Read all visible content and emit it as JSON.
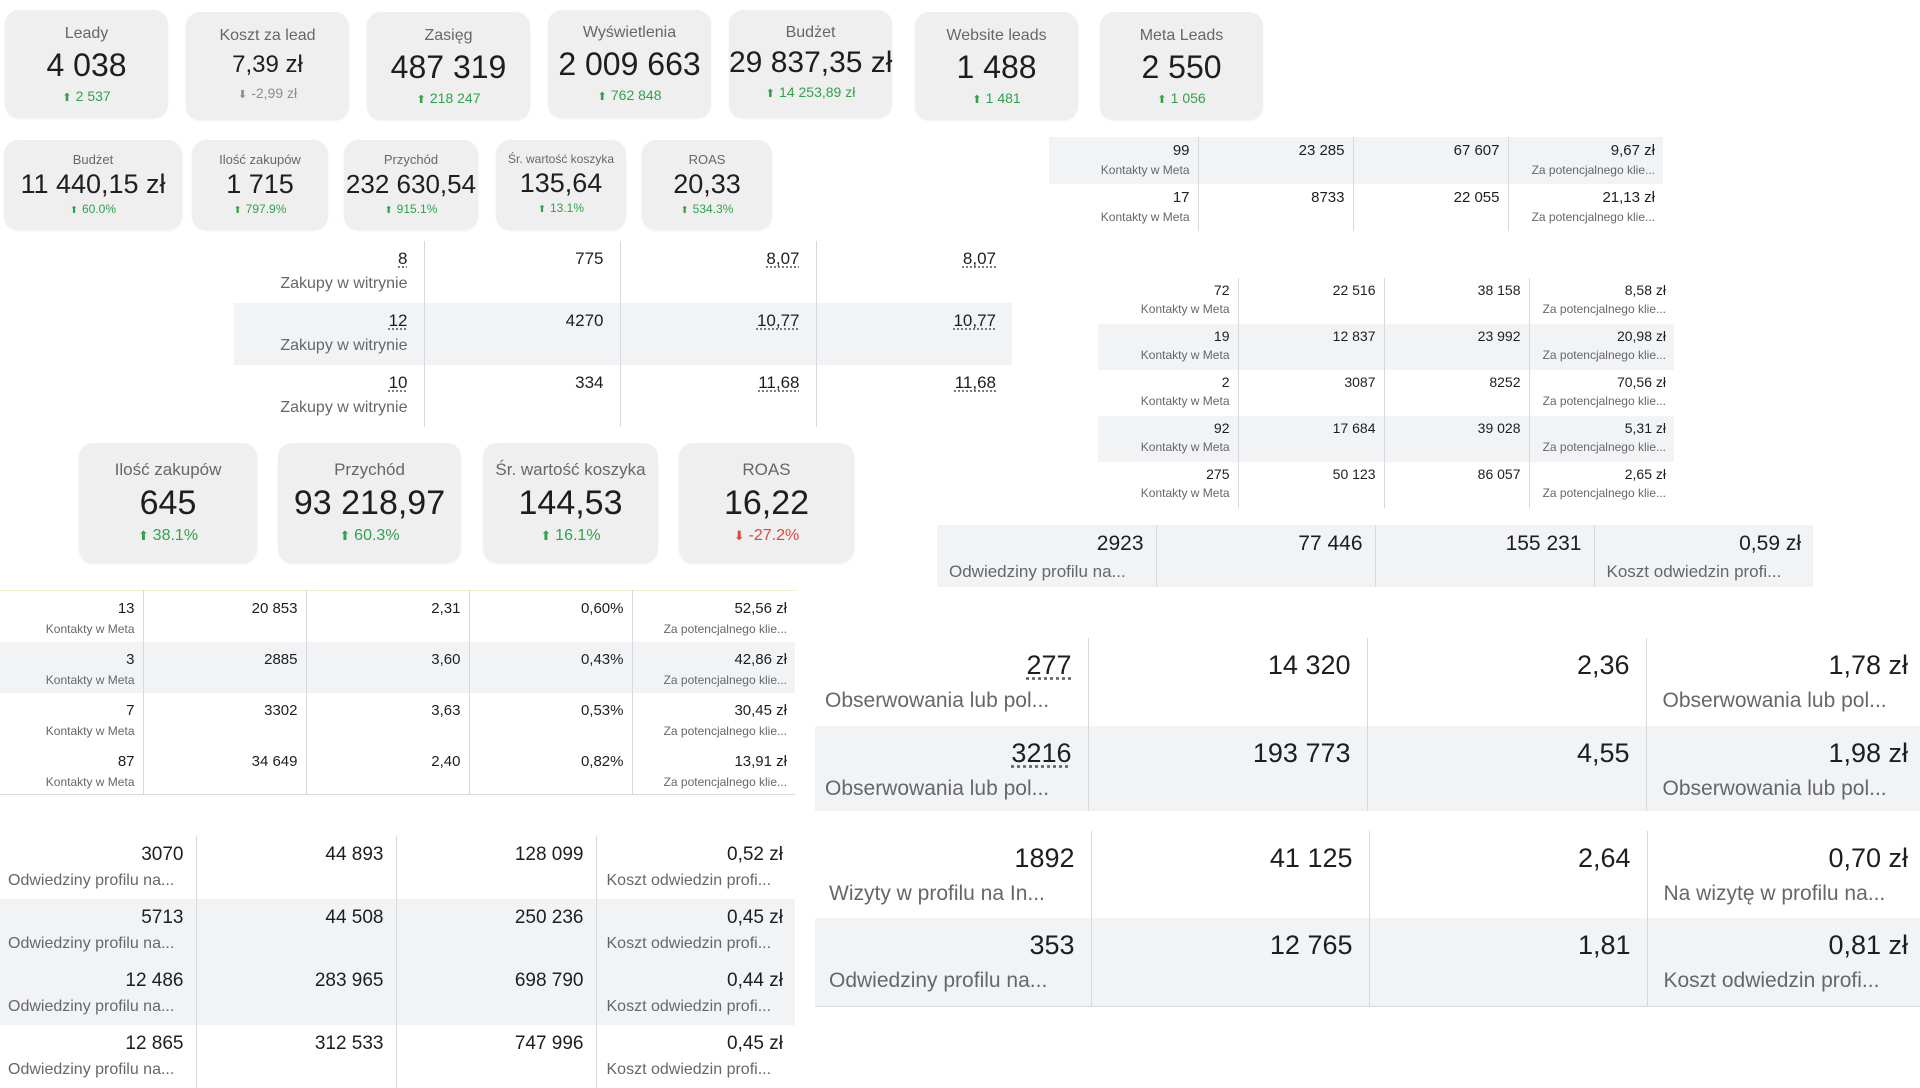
{
  "row1_cards": [
    {
      "title": "Leady",
      "value": "4 038",
      "delta": "2 537",
      "dir": "up"
    },
    {
      "title": "Koszt za lead",
      "value": "7,39 zł",
      "delta": "-2,99 zł",
      "dir": "neutral"
    },
    {
      "title": "Zasięg",
      "value": "487 319",
      "delta": "218 247",
      "dir": "up"
    },
    {
      "title": "Wyświetlenia",
      "value": "2 009 663",
      "delta": "762 848",
      "dir": "up"
    },
    {
      "title": "Budżet",
      "value": "29 837,35 zł",
      "delta": "14 253,89 zł",
      "dir": "up"
    },
    {
      "title": "Website leads",
      "value": "1 488",
      "delta": "1 481",
      "dir": "up"
    },
    {
      "title": "Meta Leads",
      "value": "2 550",
      "delta": "1 056",
      "dir": "up"
    }
  ],
  "row2_cards": [
    {
      "title": "Budżet",
      "value": "11 440,15 zł",
      "delta": "60.0%",
      "dir": "up"
    },
    {
      "title": "Ilość zakupów",
      "value": "1 715",
      "delta": "797.9%",
      "dir": "up"
    },
    {
      "title": "Przychód",
      "value": "232 630,54",
      "delta": "915.1%",
      "dir": "up"
    },
    {
      "title": "Śr. wartość koszyka",
      "value": "135,64",
      "delta": "13.1%",
      "dir": "up"
    },
    {
      "title": "ROAS",
      "value": "20,33",
      "delta": "534.3%",
      "dir": "up"
    }
  ],
  "row3_cards": [
    {
      "title": "Ilość zakupów",
      "value": "645",
      "delta": "38.1%",
      "dir": "up"
    },
    {
      "title": "Przychód",
      "value": "93 218,97",
      "delta": "60.3%",
      "dir": "up"
    },
    {
      "title": "Śr. wartość koszyka",
      "value": "144,53",
      "delta": "16.1%",
      "dir": "up"
    },
    {
      "title": "ROAS",
      "value": "16,22",
      "delta": "-27.2%",
      "dir": "down"
    }
  ],
  "purchases_table": [
    {
      "c1": "8",
      "c1_sub": "Zakupy w witrynie",
      "c2": "775",
      "c3": "8,07",
      "c4": "8,07"
    },
    {
      "c1": "12",
      "c1_sub": "Zakupy w witrynie",
      "c2": "4270",
      "c3": "10,77",
      "c4": "10,77"
    },
    {
      "c1": "10",
      "c1_sub": "Zakupy w witrynie",
      "c2": "334",
      "c3": "11,68",
      "c4": "11,68"
    }
  ],
  "contacts_table_a": [
    {
      "c1": "99",
      "c1_sub": "Kontakty w Meta",
      "c2": "23 285",
      "c3": "67 607",
      "c4": "9,67 zł",
      "c4_sub": "Za potencjalnego klie..."
    },
    {
      "c1": "17",
      "c1_sub": "Kontakty w Meta",
      "c2": "8733",
      "c3": "22 055",
      "c4": "21,13 zł",
      "c4_sub": "Za potencjalnego klie..."
    }
  ],
  "contacts_table_b": [
    {
      "c1": "72",
      "c1_sub": "Kontakty w Meta",
      "c2": "22 516",
      "c3": "38 158",
      "c4": "8,58 zł",
      "c4_sub": "Za potencjalnego klie..."
    },
    {
      "c1": "19",
      "c1_sub": "Kontakty w Meta",
      "c2": "12 837",
      "c3": "23 992",
      "c4": "20,98 zł",
      "c4_sub": "Za potencjalnego klie..."
    },
    {
      "c1": "2",
      "c1_sub": "Kontakty w Meta",
      "c2": "3087",
      "c3": "8252",
      "c4": "70,56 zł",
      "c4_sub": "Za potencjalnego klie..."
    },
    {
      "c1": "92",
      "c1_sub": "Kontakty w Meta",
      "c2": "17 684",
      "c3": "39 028",
      "c4": "5,31 zł",
      "c4_sub": "Za potencjalnego klie..."
    },
    {
      "c1": "275",
      "c1_sub": "Kontakty w Meta",
      "c2": "50 123",
      "c3": "86 057",
      "c4": "2,65 zł",
      "c4_sub": "Za potencjalnego klie..."
    }
  ],
  "profile_visits_single": [
    {
      "c1": "2923",
      "c1_sub": "Odwiedziny profilu na...",
      "c2": "77 446",
      "c3": "155 231",
      "c4": "0,59 zł",
      "c4_sub": "Koszt odwiedzin profi..."
    }
  ],
  "contacts_table_c": [
    {
      "c1": "13",
      "c1_sub": "Kontakty w Meta",
      "c2": "20 853",
      "c3": "2,31",
      "c4": "0,60%",
      "c5": "52,56 zł",
      "c5_sub": "Za potencjalnego klie..."
    },
    {
      "c1": "3",
      "c1_sub": "Kontakty w Meta",
      "c2": "2885",
      "c3": "3,60",
      "c4": "0,43%",
      "c5": "42,86 zł",
      "c5_sub": "Za potencjalnego klie..."
    },
    {
      "c1": "7",
      "c1_sub": "Kontakty w Meta",
      "c2": "3302",
      "c3": "3,63",
      "c4": "0,53%",
      "c5": "30,45 zł",
      "c5_sub": "Za potencjalnego klie..."
    },
    {
      "c1": "87",
      "c1_sub": "Kontakty w Meta",
      "c2": "34 649",
      "c3": "2,40",
      "c4": "0,82%",
      "c5": "13,91 zł",
      "c5_sub": "Za potencjalnego klie..."
    }
  ],
  "follows_table": [
    {
      "c1": "277",
      "c1_sub": "Obserwowania lub pol...",
      "c2": "14 320",
      "c3": "2,36",
      "c4": "1,78 zł",
      "c4_sub": "Obserwowania lub pol..."
    },
    {
      "c1": "3216",
      "c1_sub": "Obserwowania lub pol...",
      "c2": "193 773",
      "c3": "4,55",
      "c4": "1,98 zł",
      "c4_sub": "Obserwowania lub pol..."
    }
  ],
  "profile_visits_table": [
    {
      "c1": "3070",
      "c1_sub": "Odwiedziny profilu na...",
      "c2": "44 893",
      "c3": "128 099",
      "c4": "0,52 zł",
      "c4_sub": "Koszt odwiedzin profi..."
    },
    {
      "c1": "5713",
      "c1_sub": "Odwiedziny profilu na...",
      "c2": "44 508",
      "c3": "250 236",
      "c4": "0,45 zł",
      "c4_sub": "Koszt odwiedzin profi..."
    },
    {
      "c1": "12 486",
      "c1_sub": "Odwiedziny profilu na...",
      "c2": "283 965",
      "c3": "698 790",
      "c4": "0,44 zł",
      "c4_sub": "Koszt odwiedzin profi..."
    },
    {
      "c1": "12 865",
      "c1_sub": "Odwiedziny profilu na...",
      "c2": "312 533",
      "c3": "747 996",
      "c4": "0,45 zł",
      "c4_sub": "Koszt odwiedzin profi..."
    }
  ],
  "instagram_table": [
    {
      "c1": "1892",
      "c1_sub": "Wizyty w profilu na In...",
      "c2": "41 125",
      "c3": "2,64",
      "c4": "0,70 zł",
      "c4_sub": "Na wizytę w profilu na..."
    },
    {
      "c1": "353",
      "c1_sub": "Odwiedziny profilu na...",
      "c2": "12 765",
      "c3": "1,81",
      "c4": "0,81 zł",
      "c4_sub": "Koszt odwiedzin profi..."
    }
  ],
  "colors": {
    "up": "#31a24c",
    "down": "#e4453a",
    "neutral": "#8a8d91",
    "card_bg": "#efefef",
    "row_alt": "#f2f3f5"
  }
}
